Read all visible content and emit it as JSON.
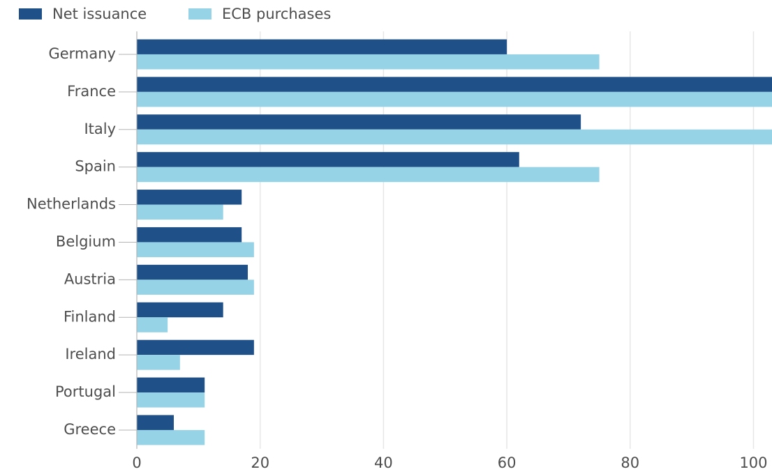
{
  "chart_data": {
    "type": "bar",
    "orientation": "horizontal",
    "categories": [
      "Germany",
      "France",
      "Italy",
      "Spain",
      "Netherlands",
      "Belgium",
      "Austria",
      "Finland",
      "Ireland",
      "Portugal",
      "Greece"
    ],
    "series": [
      {
        "name": "Net issuance",
        "color": "#1f5087",
        "values": [
          60,
          103,
          72,
          62,
          17,
          17,
          18,
          14,
          19,
          11,
          6
        ]
      },
      {
        "name": "ECB purchases",
        "color": "#96d3e6",
        "values": [
          75,
          103,
          103,
          75,
          14,
          19,
          19,
          5,
          7,
          11,
          11
        ]
      }
    ],
    "xlim": [
      0,
      103
    ],
    "xticks": [
      0,
      20,
      40,
      60,
      80,
      100
    ],
    "grid": true
  }
}
